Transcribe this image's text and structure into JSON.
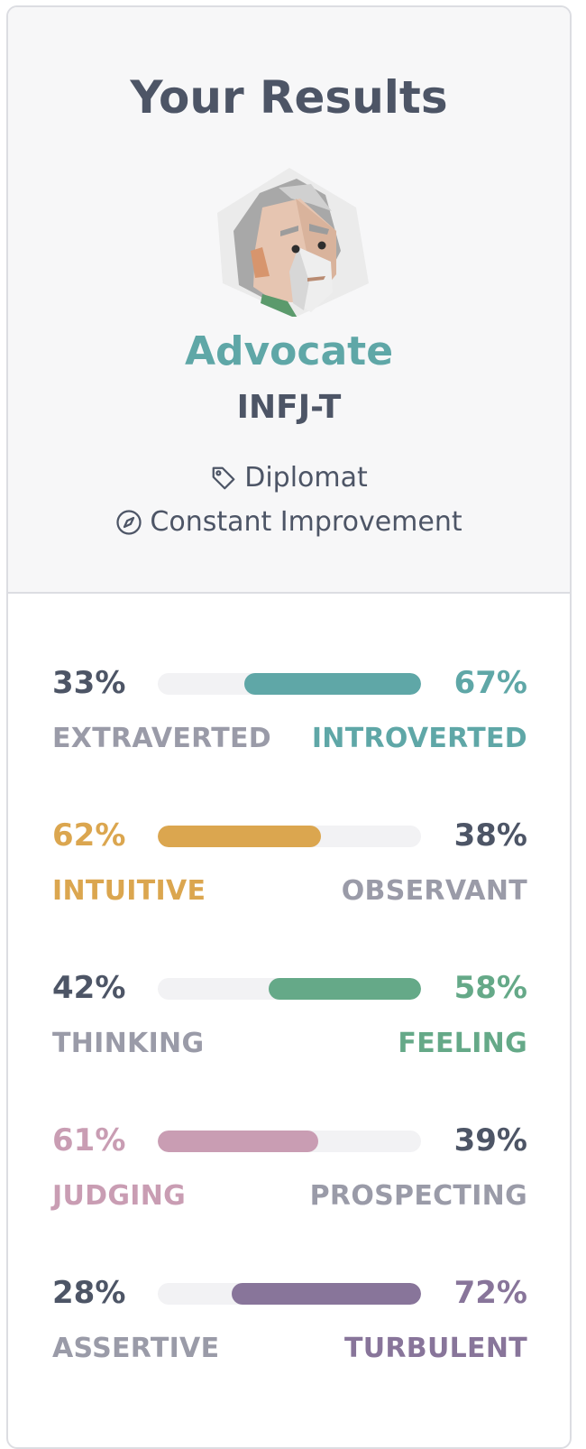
{
  "header": {
    "title": "Your Results",
    "type_name": "Advocate",
    "type_code": "INFJ-T",
    "role": "Diplomat",
    "strategy": "Constant Improvement"
  },
  "icons": {
    "role_icon": "tag-icon",
    "strategy_icon": "compass-icon",
    "avatar": "advocate-avatar"
  },
  "colors": {
    "accent": "#5fa7a7",
    "text": "#4d5566",
    "muted": "#9a9ba8",
    "mind": "#5fa7a7",
    "energy": "#dba64f",
    "nature": "#65a988",
    "tactics": "#c99db3",
    "identity": "#88759a"
  },
  "traits": [
    {
      "left_pct": "33%",
      "right_pct": "67%",
      "left_label": "EXTRAVERTED",
      "right_label": "INTROVERTED",
      "value": 0.67,
      "dominant": "right",
      "color": "#5fa7a7"
    },
    {
      "left_pct": "62%",
      "right_pct": "38%",
      "left_label": "INTUITIVE",
      "right_label": "OBSERVANT",
      "value": 0.62,
      "dominant": "left",
      "color": "#dba64f"
    },
    {
      "left_pct": "42%",
      "right_pct": "58%",
      "left_label": "THINKING",
      "right_label": "FEELING",
      "value": 0.58,
      "dominant": "right",
      "color": "#65a988"
    },
    {
      "left_pct": "61%",
      "right_pct": "39%",
      "left_label": "JUDGING",
      "right_label": "PROSPECTING",
      "value": 0.61,
      "dominant": "left",
      "color": "#c99db3"
    },
    {
      "left_pct": "28%",
      "right_pct": "72%",
      "left_label": "ASSERTIVE",
      "right_label": "TURBULENT",
      "value": 0.72,
      "dominant": "right",
      "color": "#88759a"
    }
  ]
}
